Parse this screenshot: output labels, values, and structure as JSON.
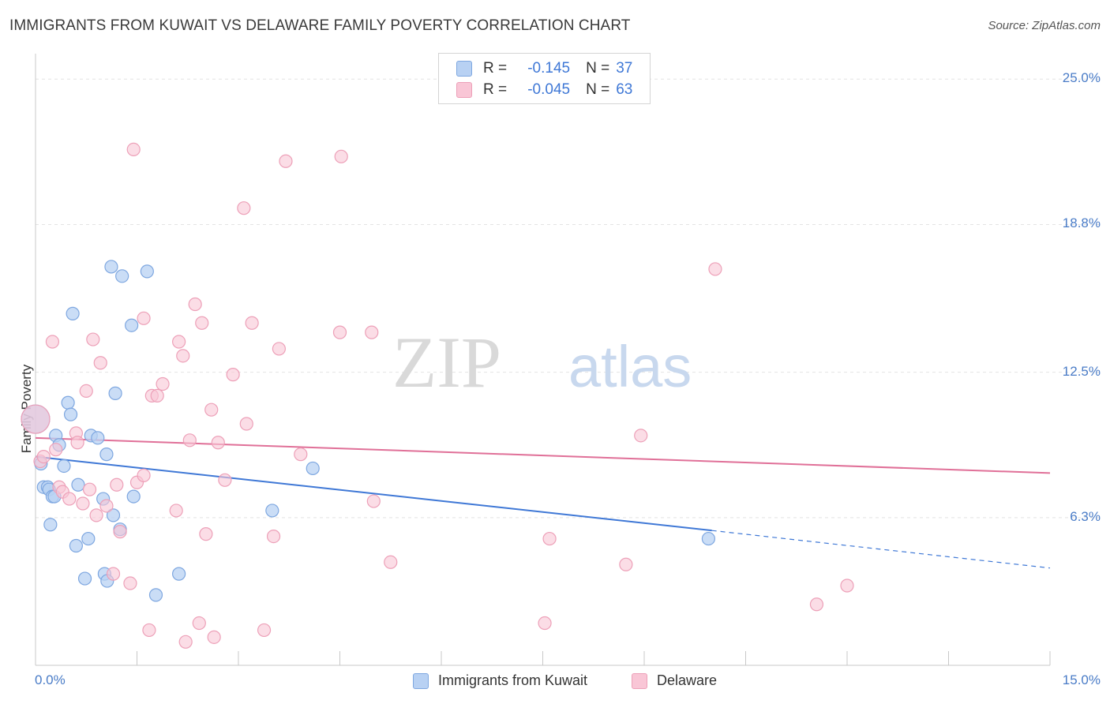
{
  "title": "IMMIGRANTS FROM KUWAIT VS DELAWARE FAMILY POVERTY CORRELATION CHART",
  "source": "Source: ZipAtlas.com",
  "watermark": {
    "zip": "ZIP",
    "atlas": "atlas"
  },
  "legend_top": {
    "rows": [
      {
        "r_label": "R =",
        "r_value": "-0.145",
        "n_label": "N =",
        "n_value": "37"
      },
      {
        "r_label": "R =",
        "r_value": "-0.045",
        "n_label": "N =",
        "n_value": "63"
      }
    ]
  },
  "colors": {
    "blue": "#3f78d6",
    "pink": "#e07098",
    "blue_fill": "#b8d1f3",
    "pink_fill": "#f9c6d6"
  },
  "chart_data": {
    "type": "scatter",
    "title": "IMMIGRANTS FROM KUWAIT VS DELAWARE FAMILY POVERTY CORRELATION CHART",
    "xlabel": "",
    "ylabel": "Family Poverty",
    "xlim": [
      0,
      15
    ],
    "ylim": [
      0,
      25.75
    ],
    "x_tick_labels": [
      "0.0%",
      "15.0%"
    ],
    "y_ticks": [
      6.3,
      12.5,
      18.8,
      25.0
    ],
    "y_tick_labels": [
      "6.3%",
      "12.5%",
      "18.8%",
      "25.0%"
    ],
    "grid": true,
    "legend": "bottom-center",
    "series": [
      {
        "name": "Immigrants from Kuwait",
        "color": "#3f78d6",
        "r": -0.145,
        "n": 37,
        "trend": {
          "x0": 0,
          "y0": 8.9,
          "x1": 10.0,
          "y1": 5.75,
          "dash_to_x": 15,
          "dash_to_y": 4.15
        },
        "points": [
          [
            0.0,
            10.5
          ],
          [
            0.08,
            8.6
          ],
          [
            0.12,
            7.6
          ],
          [
            0.18,
            7.6
          ],
          [
            0.2,
            7.5
          ],
          [
            0.25,
            7.2
          ],
          [
            0.28,
            7.2
          ],
          [
            0.3,
            9.8
          ],
          [
            0.35,
            9.4
          ],
          [
            0.42,
            8.5
          ],
          [
            0.48,
            11.2
          ],
          [
            0.52,
            10.7
          ],
          [
            0.55,
            15.0
          ],
          [
            0.63,
            7.7
          ],
          [
            0.73,
            3.7
          ],
          [
            0.78,
            5.4
          ],
          [
            0.82,
            9.8
          ],
          [
            0.92,
            9.7
          ],
          [
            0.6,
            5.1
          ],
          [
            0.22,
            6.0
          ],
          [
            1.05,
            9.0
          ],
          [
            1.0,
            7.1
          ],
          [
            1.02,
            3.9
          ],
          [
            1.06,
            3.6
          ],
          [
            1.15,
            6.4
          ],
          [
            1.25,
            5.8
          ],
          [
            1.12,
            17.0
          ],
          [
            1.28,
            16.6
          ],
          [
            1.45,
            7.2
          ],
          [
            1.42,
            14.5
          ],
          [
            1.65,
            16.8
          ],
          [
            1.18,
            11.6
          ],
          [
            1.78,
            3.0
          ],
          [
            2.12,
            3.9
          ],
          [
            3.5,
            6.6
          ],
          [
            4.1,
            8.4
          ],
          [
            9.95,
            5.4
          ]
        ]
      },
      {
        "name": "Delaware",
        "color": "#e07098",
        "r": -0.045,
        "n": 63,
        "trend": {
          "x0": 0,
          "y0": 9.7,
          "x1": 15,
          "y1": 8.2
        },
        "points": [
          [
            0.0,
            10.5
          ],
          [
            0.07,
            8.7
          ],
          [
            0.12,
            8.9
          ],
          [
            0.25,
            13.8
          ],
          [
            0.3,
            9.2
          ],
          [
            0.35,
            7.6
          ],
          [
            0.4,
            7.4
          ],
          [
            0.5,
            7.1
          ],
          [
            0.6,
            9.9
          ],
          [
            0.62,
            9.5
          ],
          [
            0.7,
            6.9
          ],
          [
            0.75,
            11.7
          ],
          [
            0.8,
            7.5
          ],
          [
            0.85,
            13.9
          ],
          [
            0.9,
            6.4
          ],
          [
            0.96,
            12.9
          ],
          [
            1.05,
            6.8
          ],
          [
            1.15,
            3.9
          ],
          [
            1.2,
            7.7
          ],
          [
            1.25,
            5.7
          ],
          [
            1.4,
            3.5
          ],
          [
            1.45,
            22.0
          ],
          [
            1.5,
            7.8
          ],
          [
            1.6,
            8.1
          ],
          [
            1.6,
            14.8
          ],
          [
            1.68,
            1.5
          ],
          [
            1.72,
            11.5
          ],
          [
            1.8,
            11.5
          ],
          [
            1.88,
            12.0
          ],
          [
            2.08,
            6.6
          ],
          [
            2.12,
            13.8
          ],
          [
            2.18,
            13.2
          ],
          [
            2.22,
            1.0
          ],
          [
            2.28,
            9.6
          ],
          [
            2.36,
            15.4
          ],
          [
            2.42,
            1.8
          ],
          [
            2.46,
            14.6
          ],
          [
            2.52,
            5.6
          ],
          [
            2.6,
            10.9
          ],
          [
            2.64,
            1.2
          ],
          [
            2.7,
            9.5
          ],
          [
            2.8,
            7.9
          ],
          [
            2.92,
            12.4
          ],
          [
            3.08,
            19.5
          ],
          [
            3.12,
            10.3
          ],
          [
            3.2,
            14.6
          ],
          [
            3.38,
            1.5
          ],
          [
            3.52,
            5.5
          ],
          [
            3.7,
            21.5
          ],
          [
            3.6,
            13.5
          ],
          [
            3.92,
            9.0
          ],
          [
            4.52,
            21.7
          ],
          [
            4.5,
            14.2
          ],
          [
            4.97,
            14.2
          ],
          [
            5.0,
            7.0
          ],
          [
            5.25,
            4.4
          ],
          [
            7.53,
            1.8
          ],
          [
            7.6,
            5.4
          ],
          [
            8.73,
            4.3
          ],
          [
            8.95,
            9.8
          ],
          [
            10.05,
            16.9
          ],
          [
            11.55,
            2.6
          ],
          [
            12.0,
            3.4
          ]
        ]
      }
    ]
  }
}
